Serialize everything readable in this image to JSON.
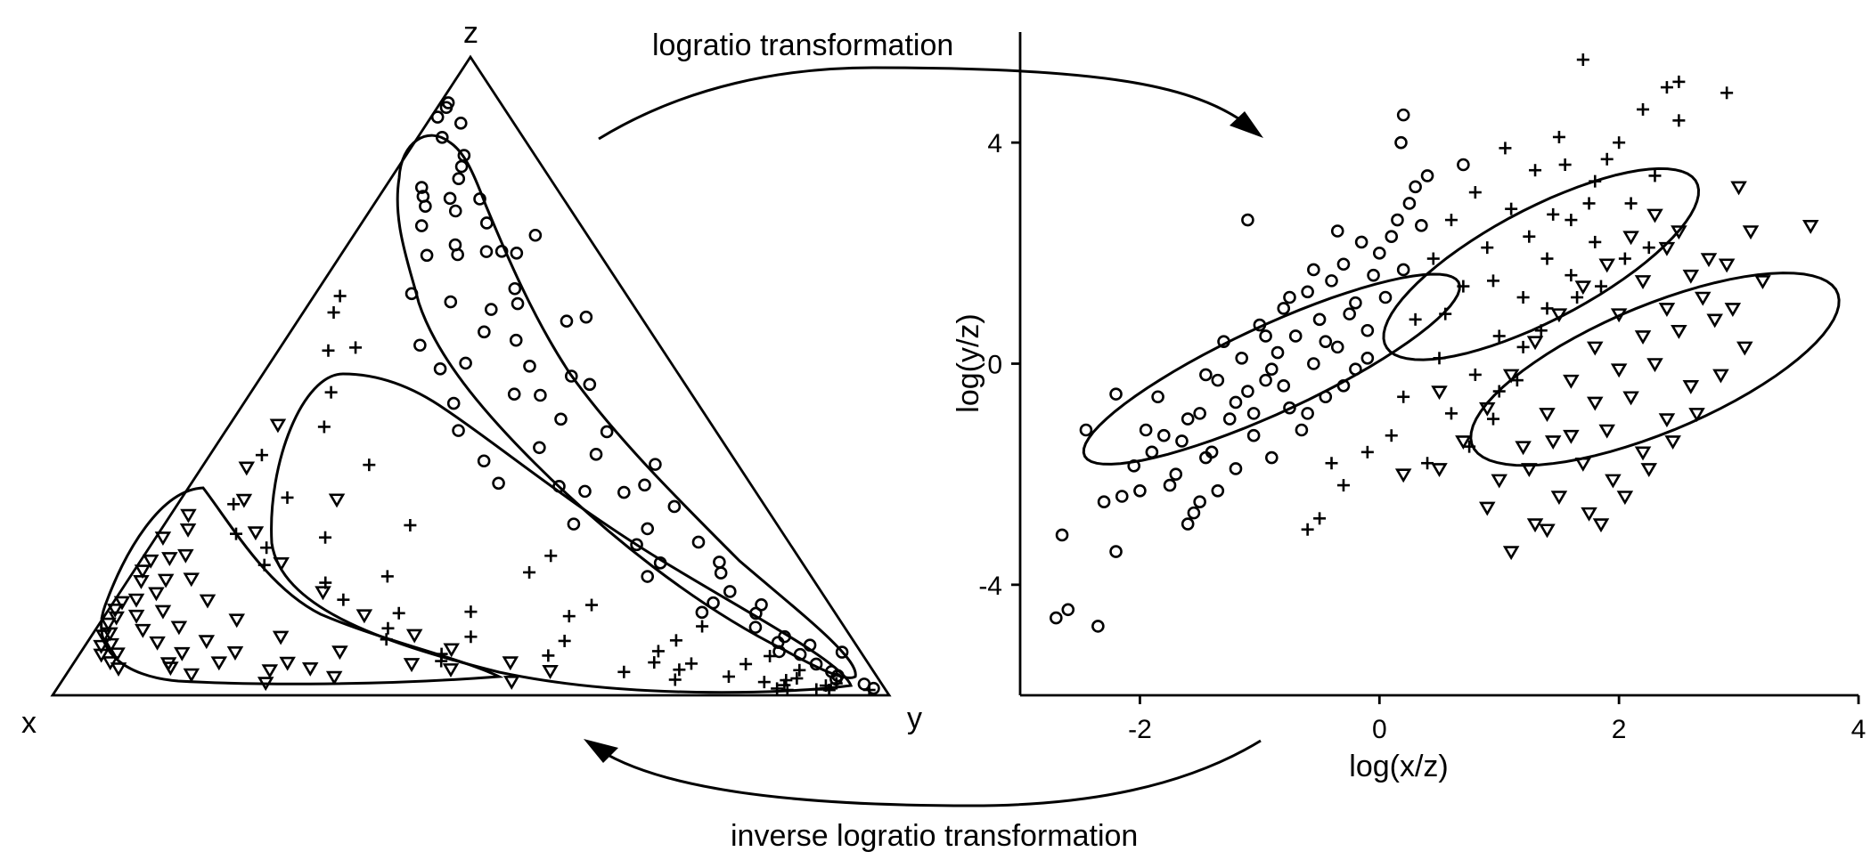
{
  "arrows": {
    "top_label": "logratio transformation",
    "bottom_label": "inverse logratio transformation"
  },
  "ternary": {
    "vertex_top": "z",
    "vertex_left": "x",
    "vertex_right": "y"
  },
  "chart_data": {
    "type": "scatter",
    "title": "",
    "xlabel": "log(x/z)",
    "ylabel": "log(y/z)",
    "xlim": [
      -3,
      4
    ],
    "ylim": [
      -6,
      6
    ],
    "xticks": [
      "-2",
      "0",
      "2",
      "4"
    ],
    "yticks": [
      "-4",
      "0",
      "4"
    ],
    "markers": {
      "group_a": "circle",
      "group_b": "plus",
      "group_c": "triangle-down"
    },
    "series": [
      {
        "marker": "circle",
        "ellipse": {
          "cx": -0.9,
          "cy": -0.1,
          "a": 2.25,
          "b": 0.6,
          "angle_deg": 48
        },
        "points": [
          [
            -2.7,
            -4.6
          ],
          [
            -2.6,
            -4.45
          ],
          [
            -2.35,
            -4.75
          ],
          [
            -2.65,
            -3.1
          ],
          [
            -2.45,
            -1.2
          ],
          [
            -2.2,
            -3.4
          ],
          [
            -2.3,
            -2.5
          ],
          [
            -2.15,
            -2.4
          ],
          [
            -2.05,
            -1.85
          ],
          [
            -1.95,
            -1.2
          ],
          [
            -1.85,
            -0.6
          ],
          [
            -1.75,
            -2.2
          ],
          [
            -1.65,
            -1.4
          ],
          [
            -1.6,
            -2.9
          ],
          [
            -1.55,
            -2.7
          ],
          [
            -1.5,
            -0.9
          ],
          [
            -1.45,
            -0.2
          ],
          [
            -1.4,
            -1.6
          ],
          [
            -1.35,
            -2.3
          ],
          [
            -1.3,
            0.4
          ],
          [
            -1.25,
            -1.0
          ],
          [
            -1.2,
            -1.9
          ],
          [
            -1.15,
            0.1
          ],
          [
            -1.1,
            -0.5
          ],
          [
            -1.05,
            -1.3
          ],
          [
            -1.0,
            0.7
          ],
          [
            -0.95,
            -0.3
          ],
          [
            -0.9,
            -1.7
          ],
          [
            -0.85,
            0.2
          ],
          [
            -0.8,
            1.0
          ],
          [
            -0.75,
            -0.8
          ],
          [
            -0.7,
            0.5
          ],
          [
            -0.65,
            -1.2
          ],
          [
            -0.6,
            1.3
          ],
          [
            -0.55,
            0.0
          ],
          [
            -0.5,
            0.8
          ],
          [
            -0.45,
            -0.6
          ],
          [
            -0.4,
            1.5
          ],
          [
            -0.35,
            0.3
          ],
          [
            -0.3,
            1.8
          ],
          [
            -0.25,
            0.9
          ],
          [
            -0.2,
            1.1
          ],
          [
            -0.15,
            2.2
          ],
          [
            -0.1,
            0.6
          ],
          [
            -0.05,
            1.6
          ],
          [
            0.0,
            2.0
          ],
          [
            0.05,
            1.2
          ],
          [
            0.1,
            2.3
          ],
          [
            0.15,
            2.6
          ],
          [
            0.2,
            1.7
          ],
          [
            0.25,
            2.9
          ],
          [
            0.3,
            3.2
          ],
          [
            0.35,
            2.5
          ],
          [
            0.4,
            3.4
          ],
          [
            0.7,
            3.6
          ],
          [
            0.2,
            4.5
          ],
          [
            0.18,
            4.0
          ],
          [
            -1.1,
            2.6
          ],
          [
            -2.2,
            -0.55
          ],
          [
            -1.8,
            -1.3
          ],
          [
            -1.7,
            -2.0
          ],
          [
            -1.5,
            -2.5
          ],
          [
            -1.2,
            -0.7
          ],
          [
            -0.9,
            -0.1
          ],
          [
            -0.6,
            -0.9
          ],
          [
            -0.3,
            -0.4
          ],
          [
            -0.1,
            0.1
          ],
          [
            -0.95,
            0.5
          ],
          [
            -0.75,
            1.2
          ],
          [
            -0.55,
            1.7
          ],
          [
            -0.35,
            2.4
          ],
          [
            -1.35,
            -0.3
          ],
          [
            -1.6,
            -1.0
          ],
          [
            -1.9,
            -1.6
          ],
          [
            -2.0,
            -2.3
          ],
          [
            -1.45,
            -1.7
          ],
          [
            -1.05,
            -0.9
          ],
          [
            -0.8,
            -0.4
          ],
          [
            -0.45,
            0.4
          ],
          [
            -0.2,
            -0.1
          ]
        ]
      },
      {
        "marker": "plus",
        "ellipse": {
          "cx": 1.35,
          "cy": 1.8,
          "a": 2.05,
          "b": 0.72,
          "angle_deg": 55
        },
        "points": [
          [
            0.4,
            -1.8
          ],
          [
            0.6,
            -0.9
          ],
          [
            0.8,
            -0.2
          ],
          [
            1.0,
            0.5
          ],
          [
            1.2,
            1.2
          ],
          [
            1.4,
            1.9
          ],
          [
            1.6,
            2.6
          ],
          [
            1.8,
            3.3
          ],
          [
            2.0,
            4.0
          ],
          [
            2.2,
            4.6
          ],
          [
            2.4,
            5.0
          ],
          [
            2.5,
            5.1
          ],
          [
            2.9,
            4.9
          ],
          [
            2.5,
            4.4
          ],
          [
            1.7,
            5.5
          ],
          [
            0.3,
            0.8
          ],
          [
            0.5,
            0.1
          ],
          [
            0.7,
            1.4
          ],
          [
            0.9,
            2.1
          ],
          [
            1.1,
            2.8
          ],
          [
            1.3,
            3.5
          ],
          [
            1.5,
            4.1
          ],
          [
            1.9,
            3.7
          ],
          [
            2.1,
            2.9
          ],
          [
            2.3,
            3.4
          ],
          [
            0.2,
            -0.6
          ],
          [
            0.1,
            -1.3
          ],
          [
            -0.1,
            -1.6
          ],
          [
            -0.4,
            -1.8
          ],
          [
            -0.5,
            -2.8
          ],
          [
            -0.6,
            -3.0
          ],
          [
            -0.3,
            -2.2
          ],
          [
            1.0,
            -0.5
          ],
          [
            1.2,
            0.3
          ],
          [
            1.4,
            1.0
          ],
          [
            1.6,
            1.6
          ],
          [
            1.8,
            2.2
          ],
          [
            0.6,
            2.6
          ],
          [
            0.8,
            3.1
          ],
          [
            1.05,
            3.9
          ],
          [
            1.55,
            3.6
          ],
          [
            1.75,
            2.9
          ],
          [
            0.45,
            1.9
          ],
          [
            0.95,
            1.5
          ],
          [
            1.25,
            2.3
          ],
          [
            1.65,
            1.2
          ],
          [
            2.05,
            1.9
          ],
          [
            0.75,
            -1.5
          ],
          [
            0.95,
            -1.0
          ],
          [
            1.15,
            -0.3
          ],
          [
            1.35,
            0.6
          ],
          [
            1.85,
            1.4
          ],
          [
            0.55,
            0.9
          ],
          [
            1.45,
            2.7
          ],
          [
            2.25,
            2.1
          ]
        ]
      },
      {
        "marker": "triangle-down",
        "ellipse": {
          "cx": 2.3,
          "cy": -0.1,
          "a": 2.15,
          "b": 0.88,
          "angle_deg": 50
        },
        "points": [
          [
            1.1,
            -3.4
          ],
          [
            1.3,
            -2.9
          ],
          [
            0.9,
            -2.6
          ],
          [
            1.5,
            -2.4
          ],
          [
            1.0,
            -2.1
          ],
          [
            1.7,
            -1.8
          ],
          [
            1.2,
            -1.5
          ],
          [
            1.9,
            -1.2
          ],
          [
            1.4,
            -0.9
          ],
          [
            2.1,
            -0.6
          ],
          [
            1.6,
            -0.3
          ],
          [
            2.3,
            0.0
          ],
          [
            1.8,
            0.3
          ],
          [
            2.5,
            0.6
          ],
          [
            2.0,
            0.9
          ],
          [
            2.7,
            1.2
          ],
          [
            2.2,
            1.5
          ],
          [
            2.9,
            1.8
          ],
          [
            2.4,
            2.1
          ],
          [
            3.1,
            2.4
          ],
          [
            3.0,
            3.2
          ],
          [
            3.6,
            2.5
          ],
          [
            3.2,
            1.5
          ],
          [
            2.8,
            0.8
          ],
          [
            2.6,
            -0.4
          ],
          [
            2.4,
            -1.0
          ],
          [
            2.2,
            -1.6
          ],
          [
            1.95,
            -2.1
          ],
          [
            1.75,
            -2.7
          ],
          [
            1.4,
            -3.0
          ],
          [
            0.5,
            -1.9
          ],
          [
            0.2,
            -2.0
          ],
          [
            0.7,
            -1.4
          ],
          [
            0.5,
            -0.5
          ],
          [
            0.9,
            -0.8
          ],
          [
            1.1,
            -0.2
          ],
          [
            1.3,
            0.4
          ],
          [
            1.5,
            0.9
          ],
          [
            1.7,
            1.4
          ],
          [
            1.9,
            1.8
          ],
          [
            2.1,
            2.3
          ],
          [
            2.3,
            2.7
          ],
          [
            2.5,
            2.4
          ],
          [
            2.75,
            1.9
          ],
          [
            2.95,
            1.0
          ],
          [
            3.05,
            0.3
          ],
          [
            2.85,
            -0.2
          ],
          [
            2.65,
            -0.9
          ],
          [
            2.45,
            -1.4
          ],
          [
            2.25,
            -1.9
          ],
          [
            2.05,
            -2.4
          ],
          [
            1.85,
            -2.9
          ],
          [
            1.6,
            -1.3
          ],
          [
            1.8,
            -0.7
          ],
          [
            2.0,
            -0.1
          ],
          [
            2.2,
            0.5
          ],
          [
            2.4,
            1.0
          ],
          [
            2.6,
            1.6
          ],
          [
            1.25,
            -1.9
          ],
          [
            1.45,
            -1.4
          ]
        ]
      }
    ]
  }
}
